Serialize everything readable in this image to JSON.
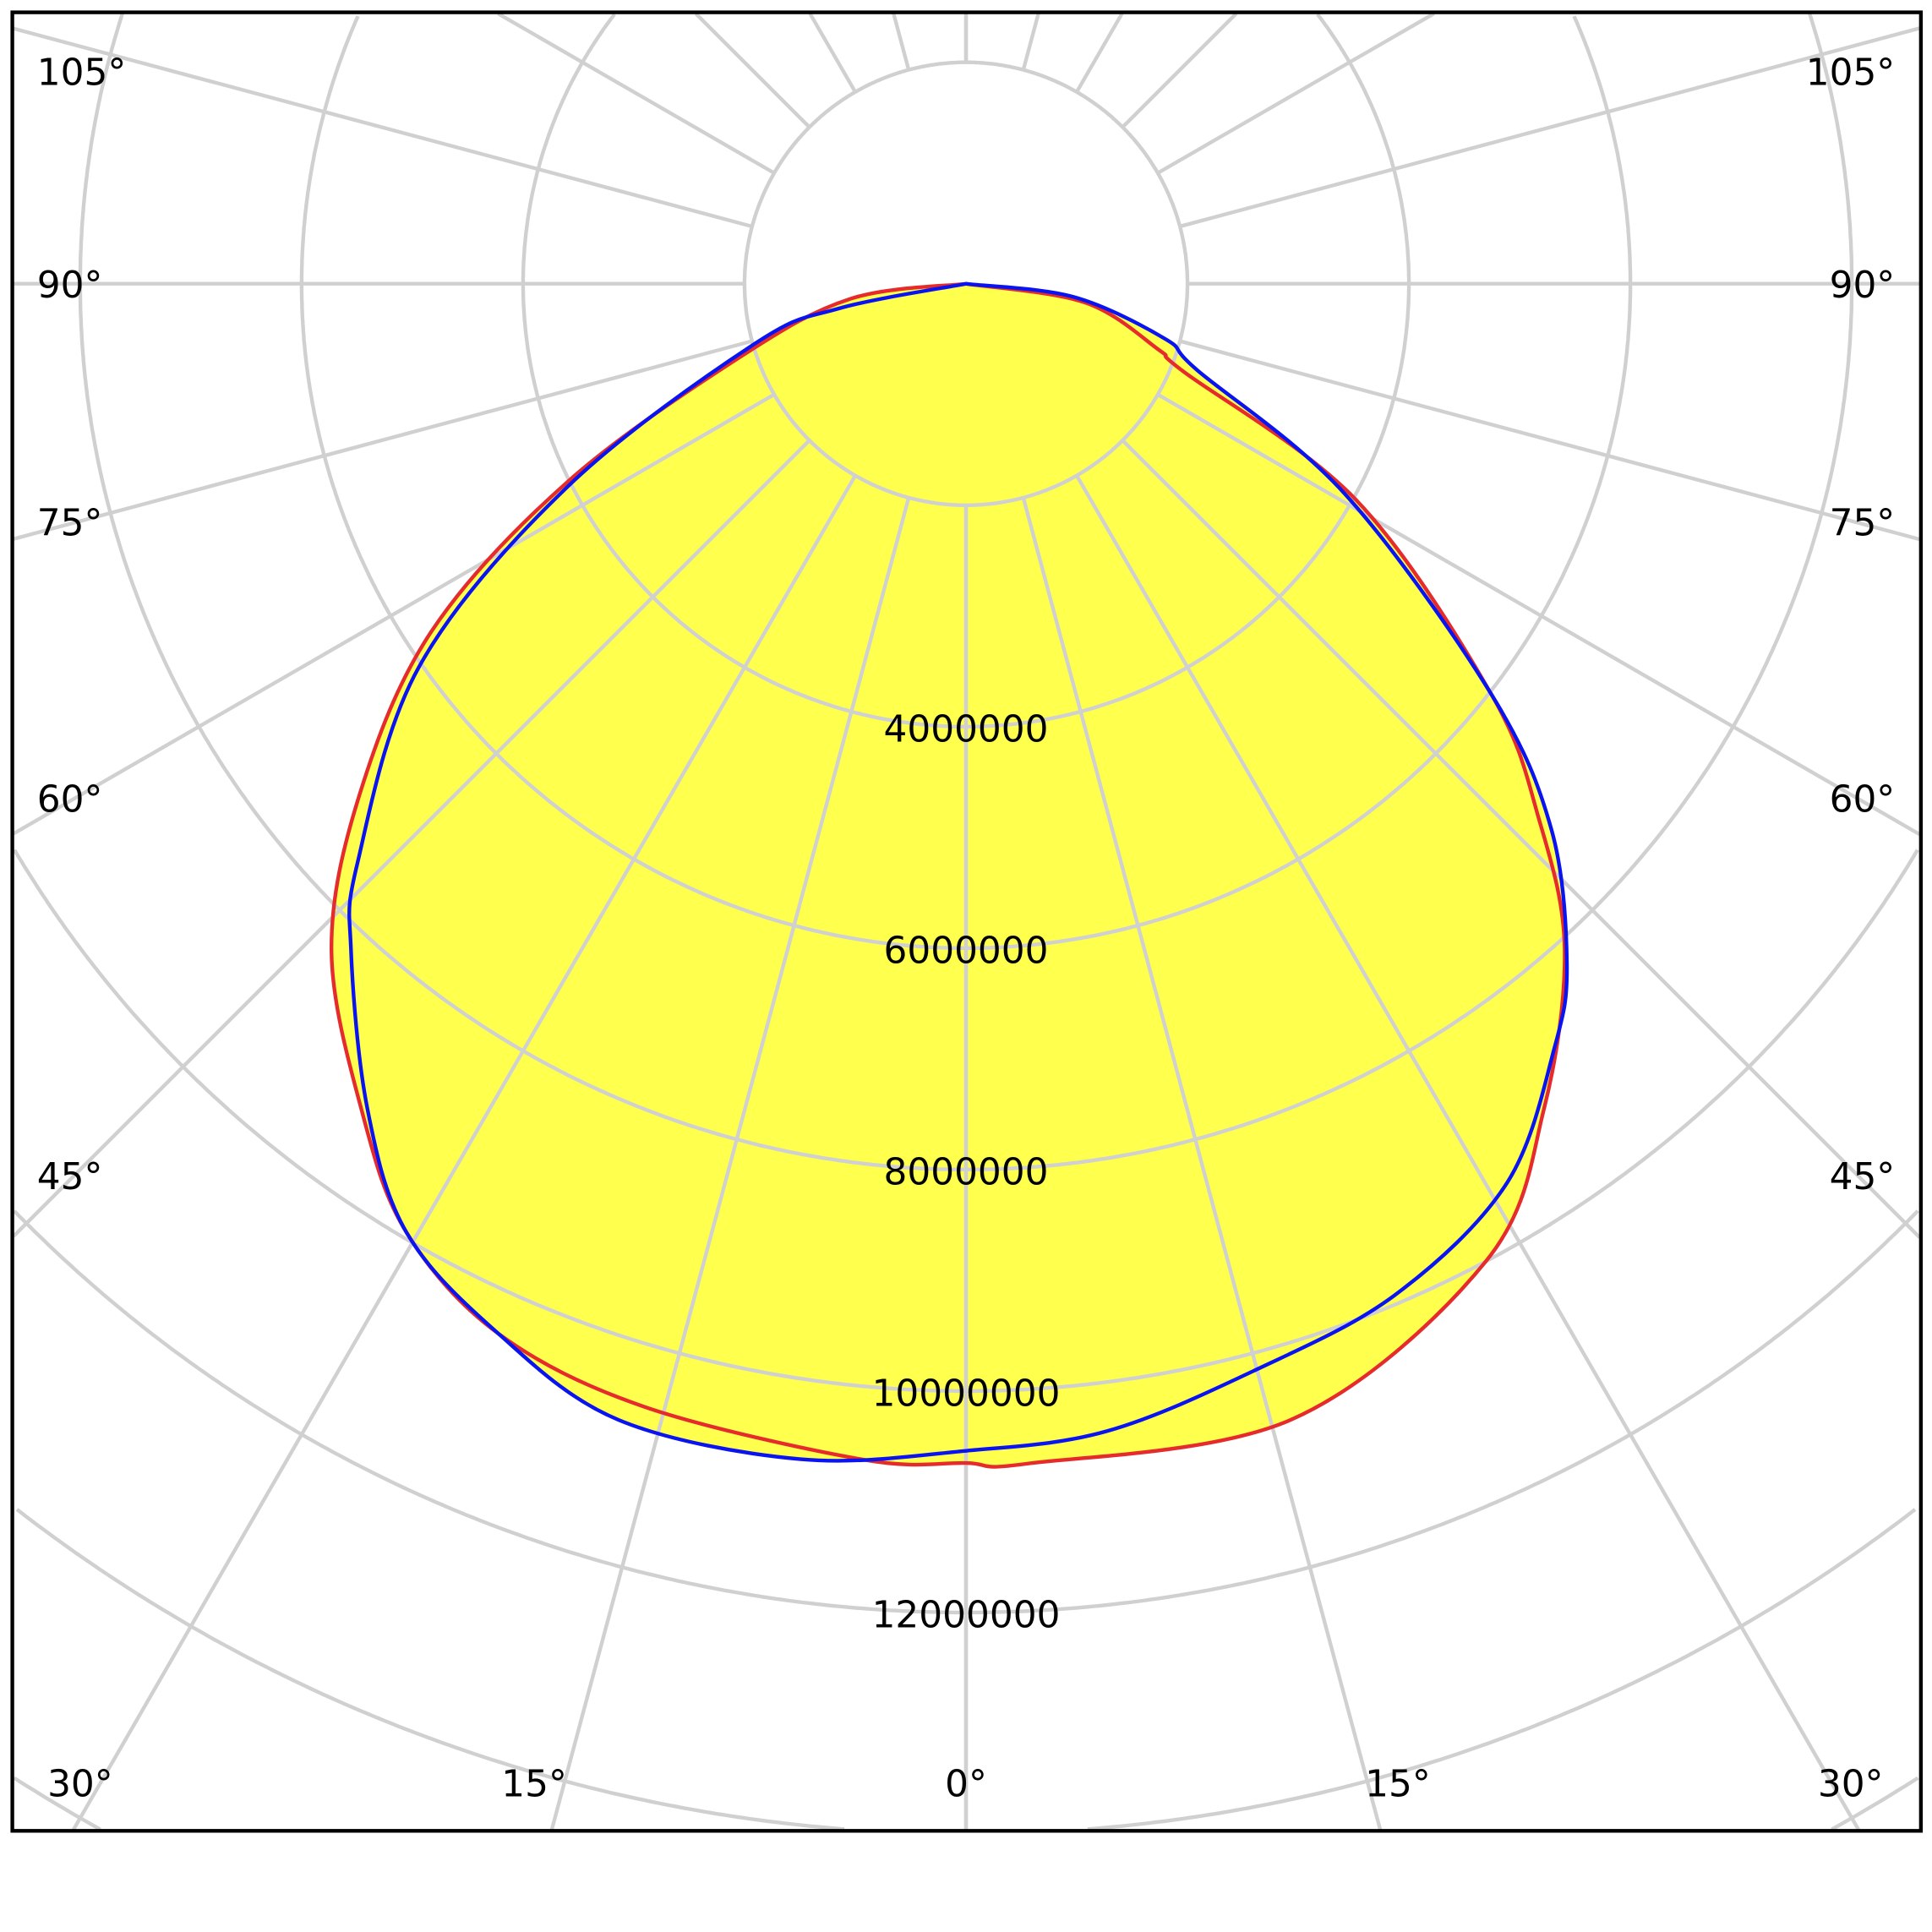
{
  "chart_data": {
    "type": "polar-line",
    "title": "",
    "radial_ticks": [
      {
        "value": 4000000,
        "label": "4000000"
      },
      {
        "value": 6000000,
        "label": "6000000"
      },
      {
        "value": 8000000,
        "label": "8000000"
      },
      {
        "value": 10000000,
        "label": "10000000"
      },
      {
        "value": 12000000,
        "label": "12000000"
      }
    ],
    "radial_grid_step": 2000000,
    "angle_grid_step_deg": 15,
    "angle_labels": [
      "105°",
      "90°",
      "75°",
      "60°",
      "45°",
      "30°",
      "15°",
      "0°"
    ],
    "grid": true,
    "fill_color": "#ffff4d",
    "series": [
      {
        "color": "#e52b2b",
        "right": [
          [
            0,
            10650000
          ],
          [
            3,
            10670000
          ],
          [
            16,
            10670000
          ],
          [
            28,
            10000000
          ],
          [
            35,
            9100000
          ],
          [
            42,
            8080000
          ],
          [
            47,
            7070000
          ],
          [
            52,
            6020000
          ],
          [
            61,
            4030000
          ],
          [
            68,
            2120000
          ],
          [
            71,
            1850000
          ],
          [
            81,
            1090000
          ],
          [
            90,
            0
          ]
        ],
        "left": [
          [
            0,
            10650000
          ],
          [
            5,
            10660000
          ],
          [
            16,
            10550000
          ],
          [
            24,
            10380000
          ],
          [
            30.5,
            9950000
          ],
          [
            36,
            9270000
          ],
          [
            43.6,
            8310000
          ],
          [
            50,
            7140000
          ],
          [
            57,
            5750000
          ],
          [
            63.6,
            4010000
          ],
          [
            72,
            2150000
          ],
          [
            82.6,
            1050000
          ],
          [
            90,
            0
          ]
        ]
      },
      {
        "color": "#0a14f0",
        "right": [
          [
            0,
            10540000
          ],
          [
            7,
            10440000
          ],
          [
            15,
            10150000
          ],
          [
            23,
            9920000
          ],
          [
            31,
            9480000
          ],
          [
            37.6,
            8710000
          ],
          [
            41.5,
            8190000
          ],
          [
            47,
            7230000
          ],
          [
            52,
            6020000
          ],
          [
            61,
            3910000
          ],
          [
            69.5,
            2230000
          ],
          [
            74.5,
            1870000
          ],
          [
            83,
            980000
          ],
          [
            90,
            0
          ]
        ],
        "left": [
          [
            0,
            10540000
          ],
          [
            8,
            10720000
          ],
          [
            17,
            10730000
          ],
          [
            24,
            10380000
          ],
          [
            30.5,
            9950000
          ],
          [
            36,
            9200000
          ],
          [
            42.7,
            8190000
          ],
          [
            46.4,
            7590000
          ],
          [
            55,
            6030000
          ],
          [
            63,
            4040000
          ],
          [
            74,
            2000000
          ],
          [
            79,
            1170000
          ],
          [
            90,
            0
          ]
        ]
      }
    ]
  }
}
